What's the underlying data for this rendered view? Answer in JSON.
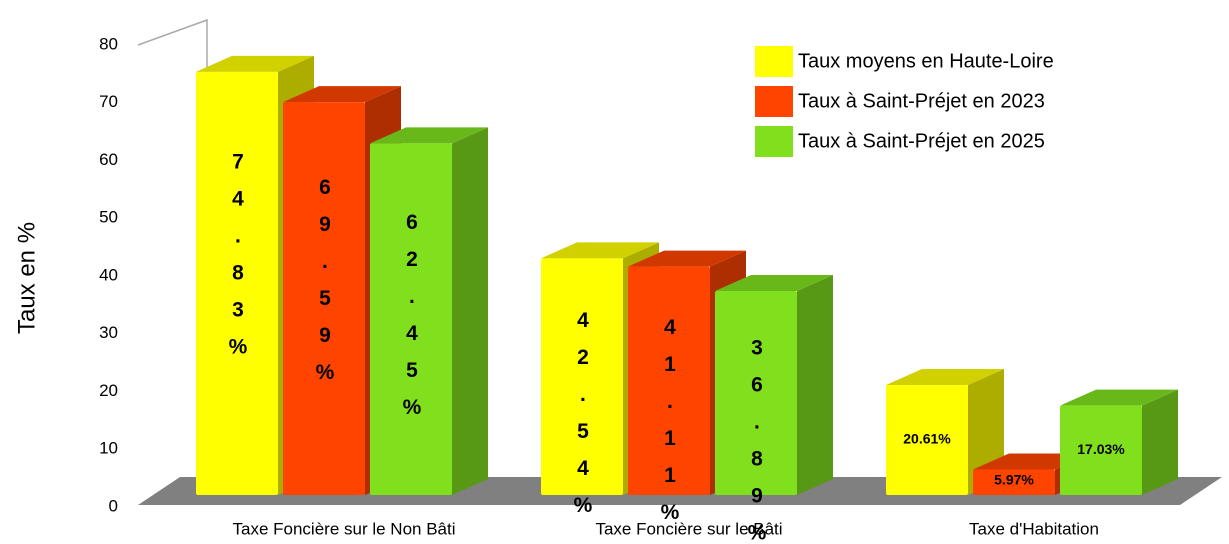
{
  "chart_data": {
    "type": "bar3d",
    "ylabel": "Taux en %",
    "categories": [
      "Taxe Foncière sur le Non Bâti",
      "Taxe Foncière sur le Bâti",
      "Taxe d'Habitation"
    ],
    "series": [
      {
        "name": "Taux moyens en Haute-Loire",
        "color": "#ffff00",
        "values": [
          74.83,
          42.54,
          20.61
        ],
        "value_labels": [
          "74.83%",
          "42.54%",
          "20.61%"
        ]
      },
      {
        "name": "Taux à Saint-Préjet en 2023",
        "color": "#ff4400",
        "values": [
          69.59,
          41.11,
          5.97
        ],
        "value_labels": [
          "69.59%",
          "41.11%",
          "5.97%"
        ]
      },
      {
        "name": "Taux à Saint-Préjet en 2025",
        "color": "#80e01e",
        "values": [
          62.45,
          36.89,
          17.03
        ],
        "value_labels": [
          "62.45%",
          "36.89%",
          "17.03%"
        ]
      }
    ],
    "ylim": [
      0,
      80
    ],
    "yticks": [
      0,
      10,
      20,
      30,
      40,
      50,
      60,
      70,
      80
    ],
    "legend": "upper right"
  }
}
